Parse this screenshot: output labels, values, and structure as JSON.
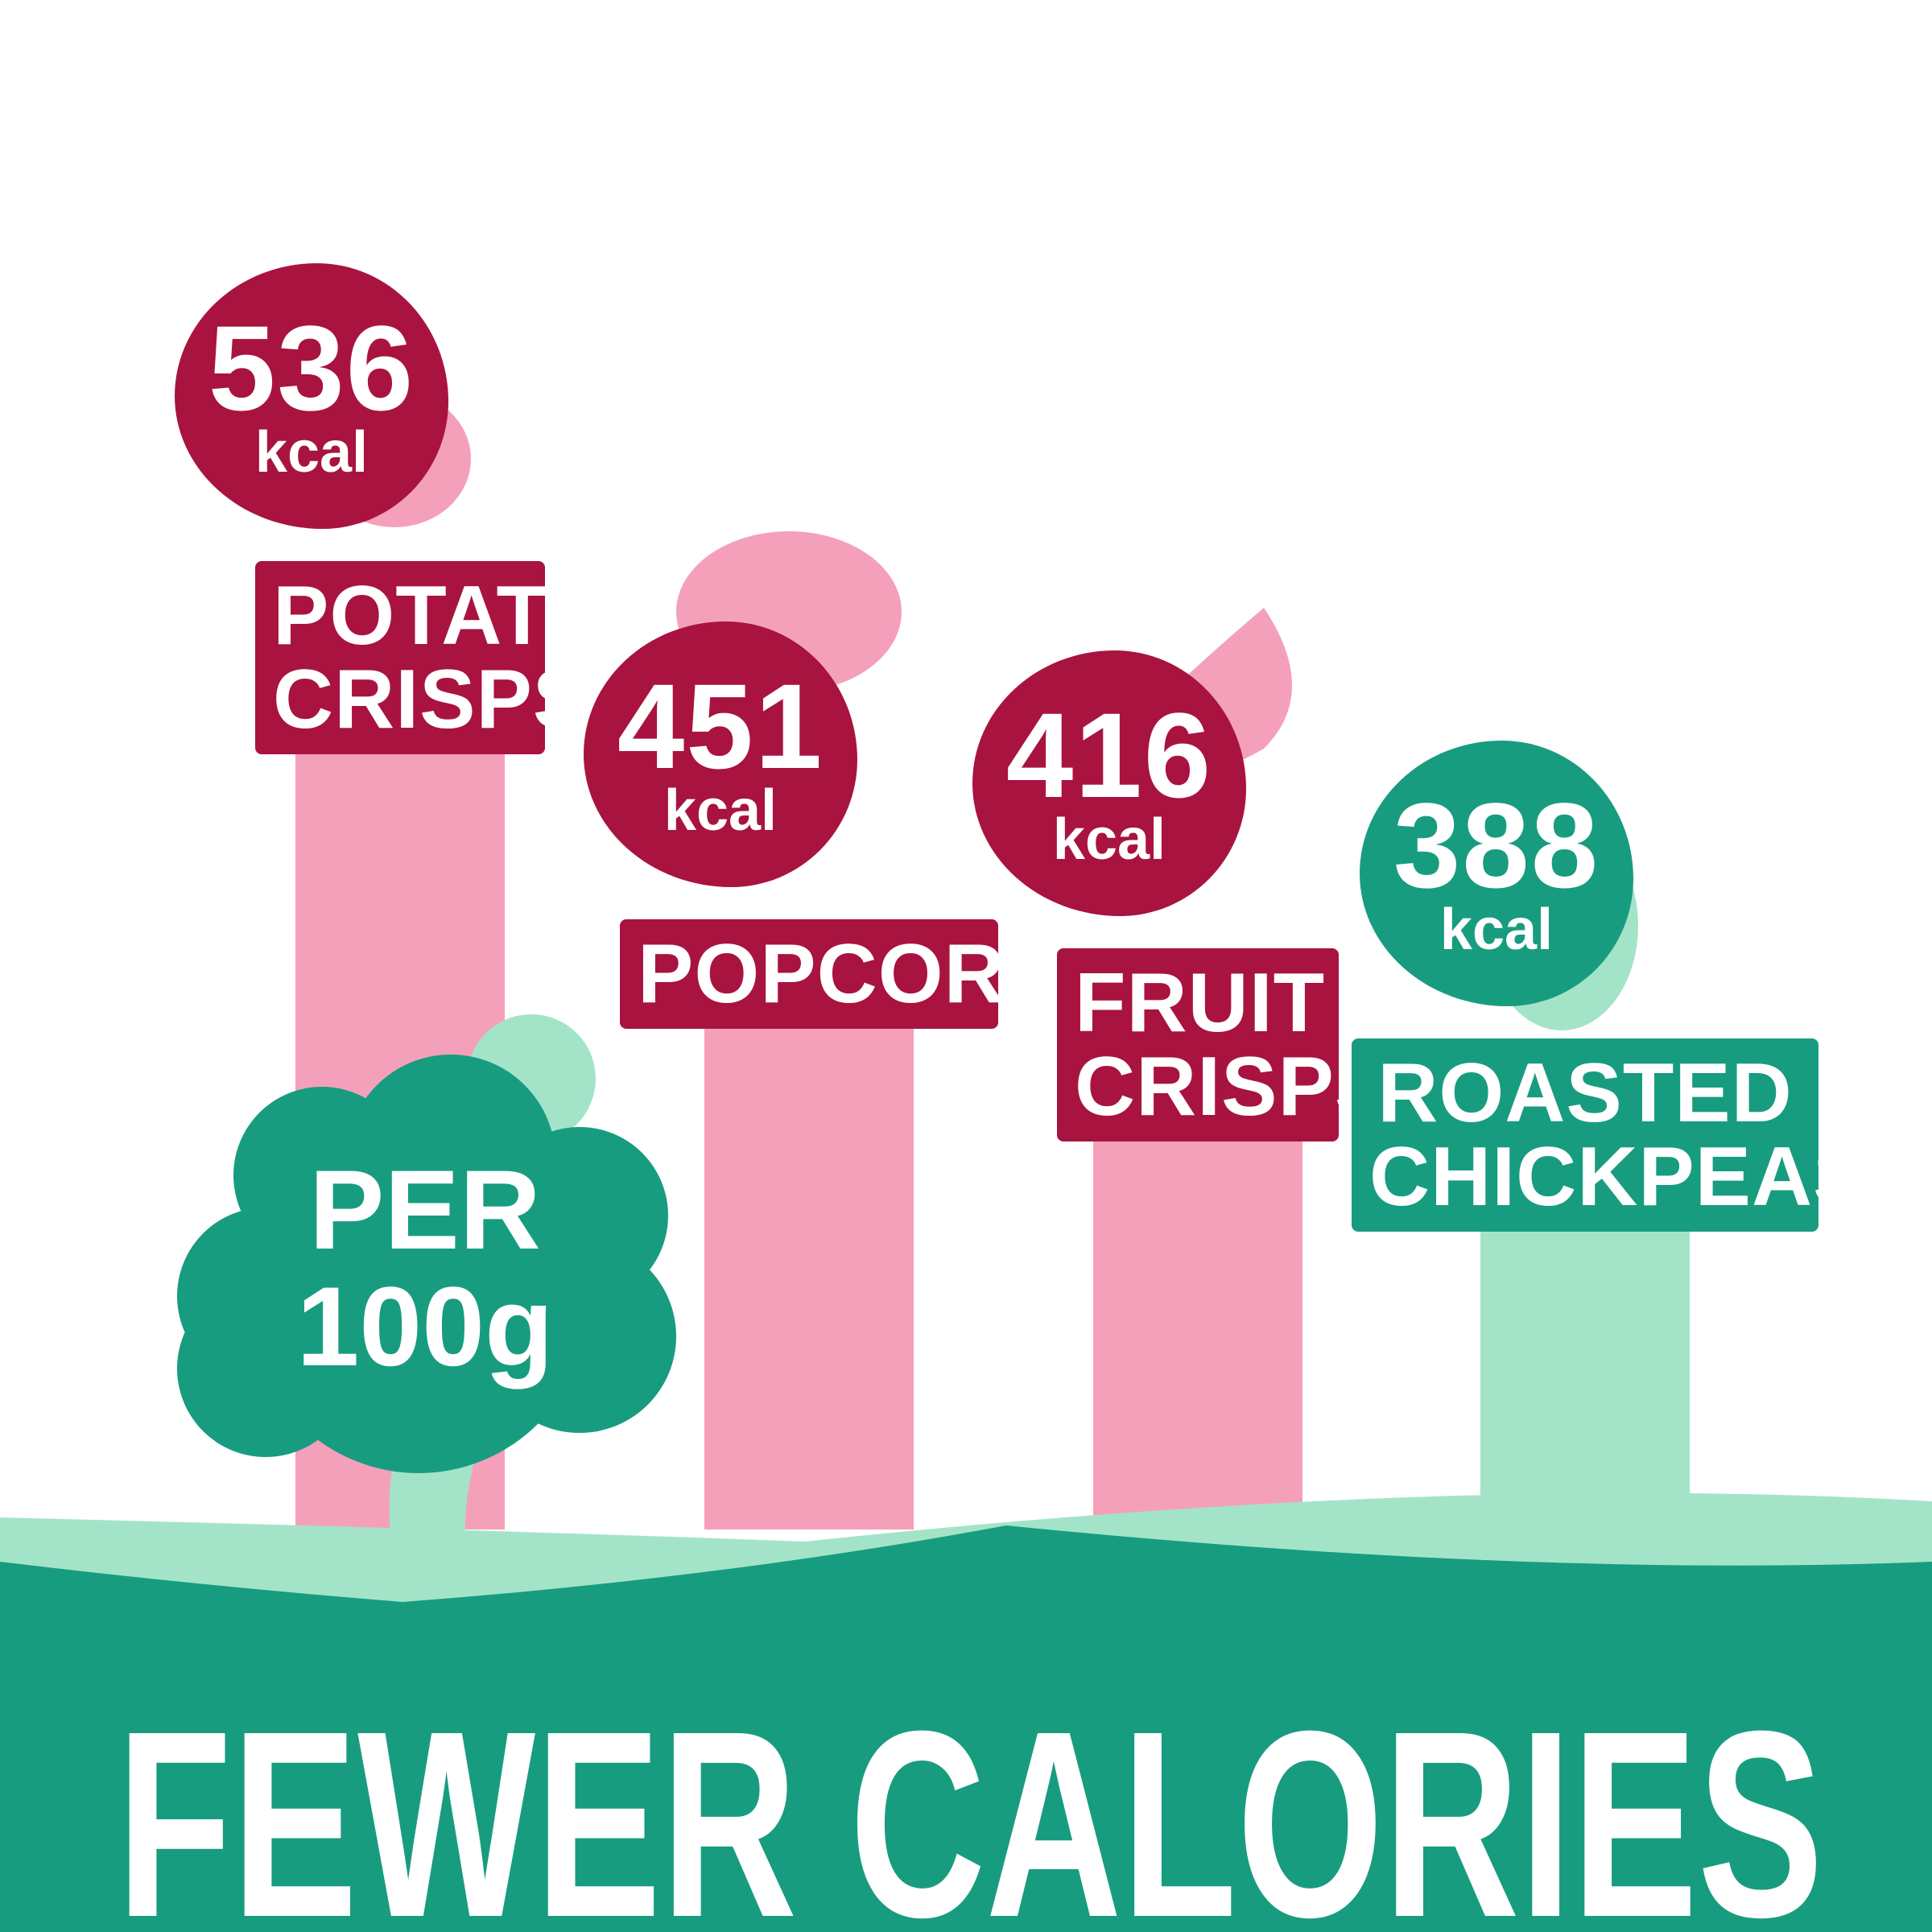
{
  "chart_data": {
    "type": "bar",
    "title": "FEWER CALORIES",
    "annotation": "PER 100g",
    "unit": "kcal",
    "categories": [
      "POTATO CRISPS",
      "POPCORN",
      "FRUIT CRISPS",
      "ROASTED CHICKPEAS"
    ],
    "values": [
      536,
      451,
      416,
      388
    ],
    "colors": [
      "#f5a0bb",
      "#f5a0bb",
      "#f5a0bb",
      "#a3e4c8"
    ],
    "label_colors": [
      "#a9133f",
      "#a9133f",
      "#a9133f",
      "#189c80"
    ]
  }
}
